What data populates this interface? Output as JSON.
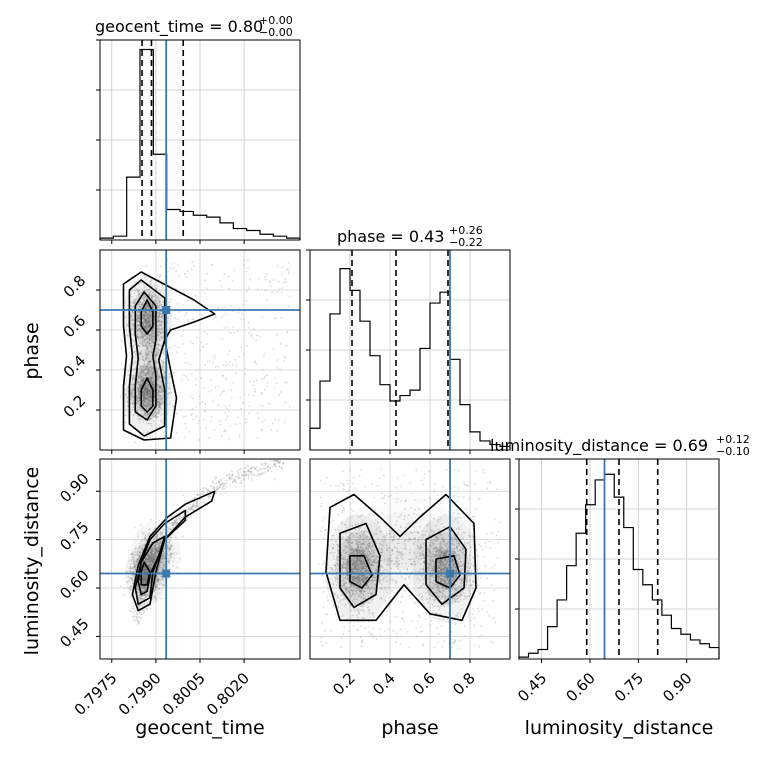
{
  "chart_data": {
    "type": "corner",
    "parameters": [
      "geocent_time",
      "phase",
      "luminosity_distance"
    ],
    "truths": [
      0.79935,
      0.7,
      0.645
    ],
    "truth_color": "#3b78b0",
    "grid": true,
    "panels": {
      "geocent_time": {
        "title_name": "geocent_time = 0.80",
        "title_plus": "+0.00",
        "title_minus": "−0.00",
        "range": [
          0.7971,
          0.8039
        ],
        "ticks": [
          0.7975,
          0.799,
          0.8005,
          0.802
        ],
        "tick_labels": [
          "0.7975",
          "0.7990",
          "0.8005",
          "0.8020"
        ],
        "quantiles": [
          0.79853,
          0.79885,
          0.79993
        ],
        "hist_max": 1.0,
        "hist": [
          0.01,
          0.02,
          0.33,
          1.0,
          0.45,
          0.16,
          0.15,
          0.13,
          0.12,
          0.09,
          0.06,
          0.05,
          0.03,
          0.02,
          0.01
        ]
      },
      "phase": {
        "title_name": "phase = 0.43",
        "title_plus": "+0.26",
        "title_minus": "−0.22",
        "range": [
          0.0,
          1.0
        ],
        "ticks": [
          0.2,
          0.4,
          0.6,
          0.8
        ],
        "tick_labels": [
          "0.2",
          "0.4",
          "0.6",
          "0.8"
        ],
        "quantiles": [
          0.21,
          0.43,
          0.69
        ],
        "hist_max": 1.05,
        "hist": [
          0.12,
          0.38,
          0.75,
          1.0,
          0.88,
          0.71,
          0.52,
          0.36,
          0.27,
          0.3,
          0.33,
          0.56,
          0.81,
          0.87,
          0.5,
          0.25,
          0.1,
          0.05,
          0.03,
          0.02
        ]
      },
      "luminosity_distance": {
        "title_name": "luminosity_distance = 0.69",
        "title_plus": "+0.12",
        "title_minus": "−0.10",
        "range": [
          0.38,
          1.0
        ],
        "ticks": [
          0.45,
          0.6,
          0.75,
          0.9
        ],
        "tick_labels": [
          "0.45",
          "0.60",
          "0.75",
          "0.90"
        ],
        "quantiles": [
          0.59,
          0.69,
          0.81
        ],
        "hist_max": 1.0,
        "hist": [
          0.01,
          0.03,
          0.05,
          0.17,
          0.31,
          0.49,
          0.66,
          0.81,
          0.94,
          0.97,
          0.85,
          0.69,
          0.47,
          0.39,
          0.31,
          0.23,
          0.16,
          0.13,
          0.1,
          0.08,
          0.06
        ]
      }
    },
    "axis_labels": {
      "x": [
        "geocent_time",
        "phase",
        "luminosity_distance"
      ],
      "y": [
        "phase",
        "luminosity_distance"
      ]
    },
    "joint": {
      "phase_vs_geocent_time": {
        "x": "geocent_time",
        "y": "phase",
        "blobs": [
          {
            "cx": 0.7987,
            "cy": 0.29,
            "sx": 0.0003,
            "sy": 0.075,
            "w": 1.0
          },
          {
            "cx": 0.7987,
            "cy": 0.66,
            "sx": 0.0003,
            "sy": 0.075,
            "w": 0.9
          },
          {
            "cx": 0.7989,
            "cy": 0.47,
            "sx": 0.00025,
            "sy": 0.11,
            "w": 0.25
          }
        ],
        "contours": [
          [
            [
              0.7987,
              0.75
            ],
            [
              0.7989,
              0.69
            ],
            [
              0.7989,
              0.62
            ],
            [
              0.7987,
              0.58
            ],
            [
              0.7985,
              0.62
            ],
            [
              0.7985,
              0.69
            ]
          ],
          [
            [
              0.7987,
              0.36
            ],
            [
              0.7989,
              0.3
            ],
            [
              0.7989,
              0.22
            ],
            [
              0.7987,
              0.19
            ],
            [
              0.7985,
              0.22
            ],
            [
              0.7985,
              0.3
            ]
          ],
          [
            [
              0.7986,
              0.79
            ],
            [
              0.799,
              0.72
            ],
            [
              0.799,
              0.55
            ],
            [
              0.7989,
              0.47
            ],
            [
              0.799,
              0.37
            ],
            [
              0.799,
              0.22
            ],
            [
              0.7987,
              0.15
            ],
            [
              0.7983,
              0.19
            ],
            [
              0.7983,
              0.32
            ],
            [
              0.7984,
              0.46
            ],
            [
              0.7983,
              0.58
            ],
            [
              0.7983,
              0.72
            ]
          ],
          [
            [
              0.7985,
              0.85
            ],
            [
              0.7993,
              0.76
            ],
            [
              0.7993,
              0.55
            ],
            [
              0.7991,
              0.45
            ],
            [
              0.7993,
              0.3
            ],
            [
              0.7993,
              0.12
            ],
            [
              0.7986,
              0.07
            ],
            [
              0.7981,
              0.13
            ],
            [
              0.7981,
              0.32
            ],
            [
              0.7982,
              0.47
            ],
            [
              0.7981,
              0.62
            ],
            [
              0.7981,
              0.8
            ]
          ],
          [
            [
              0.7985,
              0.89
            ],
            [
              0.8003,
              0.75
            ],
            [
              0.801,
              0.68
            ],
            [
              0.8003,
              0.64
            ],
            [
              0.7995,
              0.6
            ],
            [
              0.7993,
              0.55
            ],
            [
              0.7995,
              0.4
            ],
            [
              0.7997,
              0.26
            ],
            [
              0.7995,
              0.06
            ],
            [
              0.7986,
              0.05
            ],
            [
              0.7979,
              0.1
            ],
            [
              0.7979,
              0.32
            ],
            [
              0.798,
              0.47
            ],
            [
              0.7979,
              0.62
            ],
            [
              0.7979,
              0.83
            ]
          ]
        ]
      },
      "luminosity_distance_vs_geocent_time": {
        "x": "geocent_time",
        "y": "luminosity_distance",
        "curve": [
          [
            0.7983,
            0.5
          ],
          [
            0.7985,
            0.57
          ],
          [
            0.7988,
            0.66
          ],
          [
            0.7992,
            0.74
          ],
          [
            0.7997,
            0.81
          ],
          [
            0.8004,
            0.87
          ],
          [
            0.8012,
            0.92
          ],
          [
            0.8022,
            0.96
          ],
          [
            0.8033,
            0.99
          ]
        ],
        "blobs": [
          {
            "cx": 0.79865,
            "cy": 0.64,
            "sx": 0.00025,
            "sy": 0.035,
            "w": 1.0
          },
          {
            "cx": 0.799,
            "cy": 0.71,
            "sx": 0.0003,
            "sy": 0.035,
            "w": 0.6
          }
        ],
        "contours": [
          [
            [
              0.7986,
              0.68
            ],
            [
              0.7988,
              0.65
            ],
            [
              0.7987,
              0.61
            ],
            [
              0.7985,
              0.61
            ],
            [
              0.7985,
              0.65
            ]
          ],
          [
            [
              0.7989,
              0.74
            ],
            [
              0.7993,
              0.76
            ],
            [
              0.7991,
              0.7
            ],
            [
              0.7988,
              0.64
            ],
            [
              0.7987,
              0.59
            ],
            [
              0.7985,
              0.58
            ],
            [
              0.7984,
              0.62
            ],
            [
              0.7985,
              0.68
            ]
          ],
          [
            [
              0.7993,
              0.8
            ],
            [
              0.8,
              0.84
            ],
            [
              0.8,
              0.81
            ],
            [
              0.7993,
              0.75
            ],
            [
              0.7989,
              0.65
            ],
            [
              0.7988,
              0.57
            ],
            [
              0.7984,
              0.55
            ],
            [
              0.7983,
              0.6
            ],
            [
              0.7985,
              0.68
            ],
            [
              0.7988,
              0.75
            ]
          ],
          [
            [
              0.8,
              0.86
            ],
            [
              0.801,
              0.9
            ],
            [
              0.8009,
              0.87
            ],
            [
              0.8,
              0.82
            ],
            [
              0.7993,
              0.75
            ],
            [
              0.799,
              0.65
            ],
            [
              0.7988,
              0.55
            ],
            [
              0.7984,
              0.53
            ],
            [
              0.7982,
              0.58
            ],
            [
              0.7984,
              0.67
            ],
            [
              0.7988,
              0.76
            ],
            [
              0.7994,
              0.82
            ]
          ]
        ]
      },
      "luminosity_distance_vs_phase": {
        "x": "phase",
        "y": "luminosity_distance",
        "blobs": [
          {
            "cx": 0.24,
            "cy": 0.66,
            "sx": 0.06,
            "sy": 0.06,
            "w": 1.0
          },
          {
            "cx": 0.68,
            "cy": 0.66,
            "sx": 0.06,
            "sy": 0.06,
            "w": 0.95
          },
          {
            "cx": 0.46,
            "cy": 0.72,
            "sx": 0.12,
            "sy": 0.06,
            "w": 0.25
          }
        ],
        "contours": [
          [
            [
              0.2,
              0.7
            ],
            [
              0.27,
              0.7
            ],
            [
              0.31,
              0.64
            ],
            [
              0.26,
              0.6
            ],
            [
              0.2,
              0.62
            ]
          ],
          [
            [
              0.63,
              0.69
            ],
            [
              0.72,
              0.7
            ],
            [
              0.75,
              0.64
            ],
            [
              0.7,
              0.6
            ],
            [
              0.63,
              0.62
            ]
          ],
          [
            [
              0.15,
              0.77
            ],
            [
              0.28,
              0.8
            ],
            [
              0.35,
              0.7
            ],
            [
              0.33,
              0.58
            ],
            [
              0.22,
              0.54
            ],
            [
              0.15,
              0.6
            ]
          ],
          [
            [
              0.58,
              0.75
            ],
            [
              0.7,
              0.79
            ],
            [
              0.78,
              0.72
            ],
            [
              0.77,
              0.6
            ],
            [
              0.66,
              0.55
            ],
            [
              0.58,
              0.61
            ]
          ],
          [
            [
              0.1,
              0.85
            ],
            [
              0.22,
              0.89
            ],
            [
              0.35,
              0.82
            ],
            [
              0.45,
              0.76
            ],
            [
              0.55,
              0.82
            ],
            [
              0.68,
              0.89
            ],
            [
              0.82,
              0.8
            ],
            [
              0.83,
              0.6
            ],
            [
              0.76,
              0.5
            ],
            [
              0.6,
              0.52
            ],
            [
              0.47,
              0.61
            ],
            [
              0.33,
              0.5
            ],
            [
              0.15,
              0.5
            ],
            [
              0.08,
              0.65
            ]
          ]
        ]
      }
    }
  }
}
